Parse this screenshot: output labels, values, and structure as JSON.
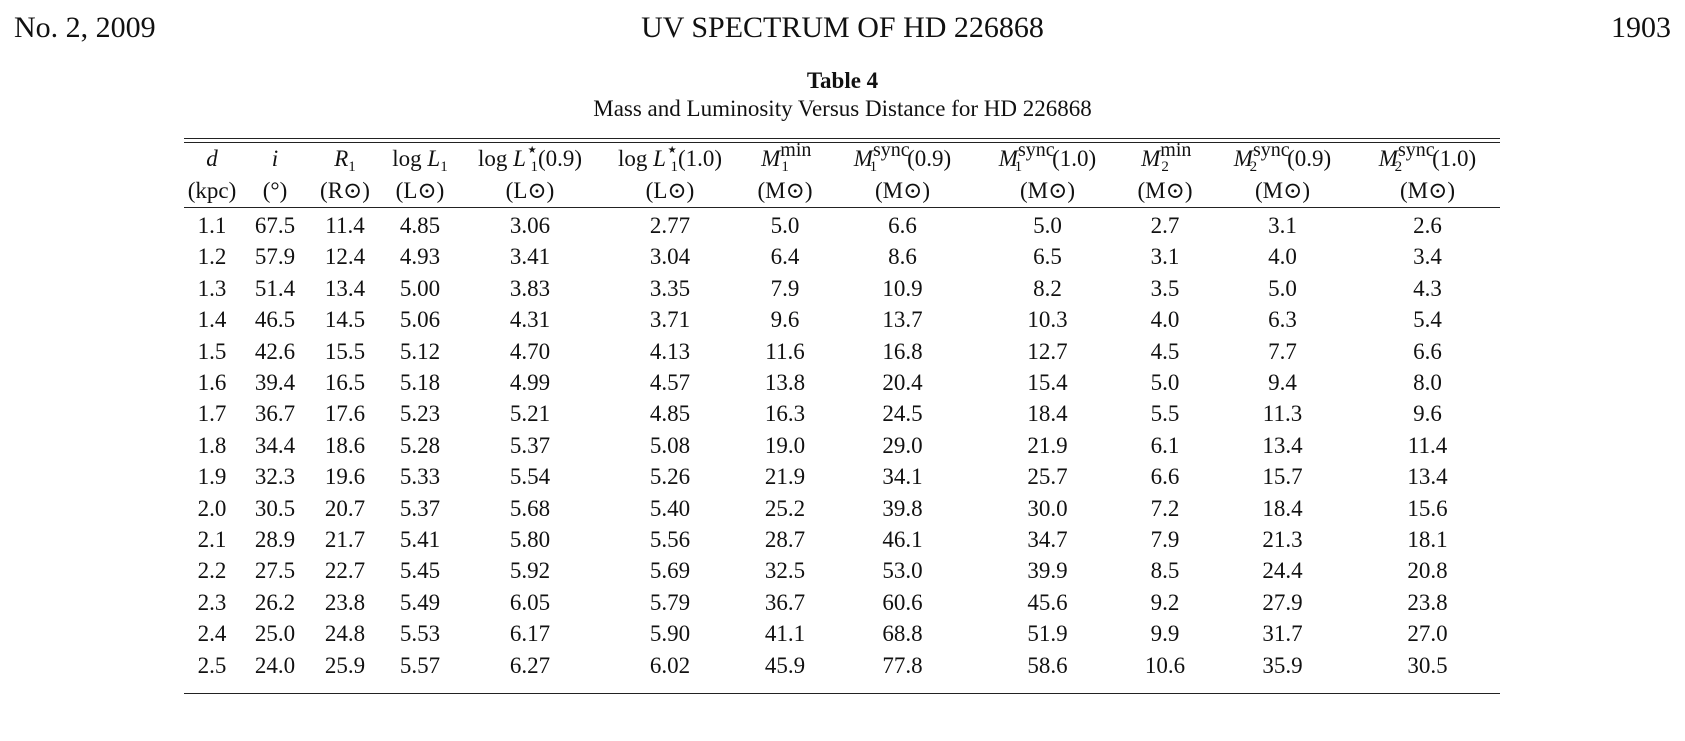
{
  "running_head": {
    "left": "No. 2, 2009",
    "center": "UV SPECTRUM OF HD 226868",
    "right": "1903"
  },
  "caption": {
    "label": "Table 4",
    "title": "Mass and Luminosity Versus Distance for HD 226868"
  },
  "table": {
    "headers": [
      {
        "sym": "d",
        "sub": "",
        "sup": "",
        "arg": "",
        "prefix": "",
        "unit": "(kpc)"
      },
      {
        "sym": "i",
        "sub": "",
        "sup": "",
        "arg": "",
        "prefix": "",
        "unit": "(°)"
      },
      {
        "sym": "R",
        "sub": "1",
        "sup": "",
        "arg": "",
        "prefix": "",
        "unit": "(R⊙)"
      },
      {
        "sym": "L",
        "sub": "1",
        "sup": "",
        "arg": "",
        "prefix": "log ",
        "unit": "(L⊙)"
      },
      {
        "sym": "L",
        "sub": "1",
        "sup": "⋆",
        "arg": "(0.9)",
        "prefix": "log ",
        "unit": "(L⊙)"
      },
      {
        "sym": "L",
        "sub": "1",
        "sup": "⋆",
        "arg": "(1.0)",
        "prefix": "log ",
        "unit": "(L⊙)"
      },
      {
        "sym": "M",
        "sub": "1",
        "sup": "min",
        "arg": "",
        "prefix": "",
        "unit": "(M⊙)"
      },
      {
        "sym": "M",
        "sub": "1",
        "sup": "sync",
        "arg": "(0.9)",
        "prefix": "",
        "unit": "(M⊙)"
      },
      {
        "sym": "M",
        "sub": "1",
        "sup": "sync",
        "arg": "(1.0)",
        "prefix": "",
        "unit": "(M⊙)"
      },
      {
        "sym": "M",
        "sub": "2",
        "sup": "min",
        "arg": "",
        "prefix": "",
        "unit": "(M⊙)"
      },
      {
        "sym": "M",
        "sub": "2",
        "sup": "sync",
        "arg": "(0.9)",
        "prefix": "",
        "unit": "(M⊙)"
      },
      {
        "sym": "M",
        "sub": "2",
        "sup": "sync",
        "arg": "(1.0)",
        "prefix": "",
        "unit": "(M⊙)"
      }
    ],
    "rows": [
      [
        "1.1",
        "67.5",
        "11.4",
        "4.85",
        "3.06",
        "2.77",
        "5.0",
        "6.6",
        "5.0",
        "2.7",
        "3.1",
        "2.6"
      ],
      [
        "1.2",
        "57.9",
        "12.4",
        "4.93",
        "3.41",
        "3.04",
        "6.4",
        "8.6",
        "6.5",
        "3.1",
        "4.0",
        "3.4"
      ],
      [
        "1.3",
        "51.4",
        "13.4",
        "5.00",
        "3.83",
        "3.35",
        "7.9",
        "10.9",
        "8.2",
        "3.5",
        "5.0",
        "4.3"
      ],
      [
        "1.4",
        "46.5",
        "14.5",
        "5.06",
        "4.31",
        "3.71",
        "9.6",
        "13.7",
        "10.3",
        "4.0",
        "6.3",
        "5.4"
      ],
      [
        "1.5",
        "42.6",
        "15.5",
        "5.12",
        "4.70",
        "4.13",
        "11.6",
        "16.8",
        "12.7",
        "4.5",
        "7.7",
        "6.6"
      ],
      [
        "1.6",
        "39.4",
        "16.5",
        "5.18",
        "4.99",
        "4.57",
        "13.8",
        "20.4",
        "15.4",
        "5.0",
        "9.4",
        "8.0"
      ],
      [
        "1.7",
        "36.7",
        "17.6",
        "5.23",
        "5.21",
        "4.85",
        "16.3",
        "24.5",
        "18.4",
        "5.5",
        "11.3",
        "9.6"
      ],
      [
        "1.8",
        "34.4",
        "18.6",
        "5.28",
        "5.37",
        "5.08",
        "19.0",
        "29.0",
        "21.9",
        "6.1",
        "13.4",
        "11.4"
      ],
      [
        "1.9",
        "32.3",
        "19.6",
        "5.33",
        "5.54",
        "5.26",
        "21.9",
        "34.1",
        "25.7",
        "6.6",
        "15.7",
        "13.4"
      ],
      [
        "2.0",
        "30.5",
        "20.7",
        "5.37",
        "5.68",
        "5.40",
        "25.2",
        "39.8",
        "30.0",
        "7.2",
        "18.4",
        "15.6"
      ],
      [
        "2.1",
        "28.9",
        "21.7",
        "5.41",
        "5.80",
        "5.56",
        "28.7",
        "46.1",
        "34.7",
        "7.9",
        "21.3",
        "18.1"
      ],
      [
        "2.2",
        "27.5",
        "22.7",
        "5.45",
        "5.92",
        "5.69",
        "32.5",
        "53.0",
        "39.9",
        "8.5",
        "24.4",
        "20.8"
      ],
      [
        "2.3",
        "26.2",
        "23.8",
        "5.49",
        "6.05",
        "5.79",
        "36.7",
        "60.6",
        "45.6",
        "9.2",
        "27.9",
        "23.8"
      ],
      [
        "2.4",
        "25.0",
        "24.8",
        "5.53",
        "6.17",
        "5.90",
        "41.1",
        "68.8",
        "51.9",
        "9.9",
        "31.7",
        "27.0"
      ],
      [
        "2.5",
        "24.0",
        "25.9",
        "5.57",
        "6.27",
        "6.02",
        "45.9",
        "77.8",
        "58.6",
        "10.6",
        "35.9",
        "30.5"
      ]
    ]
  }
}
